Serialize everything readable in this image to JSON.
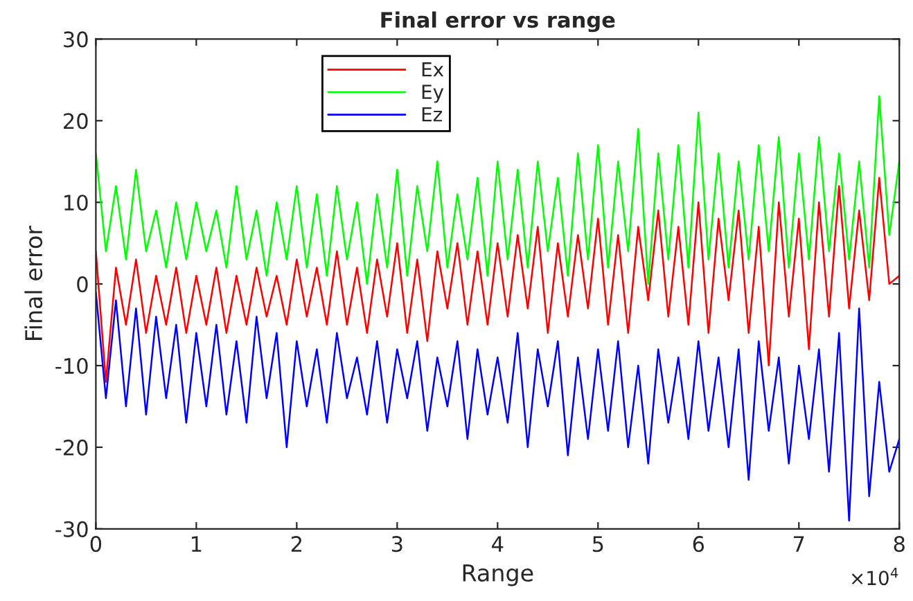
{
  "chart_data": {
    "type": "line",
    "title": "Final error vs range",
    "xlabel": "Range",
    "ylabel": "Final error",
    "x": [
      0,
      0.1,
      0.2,
      0.3,
      0.4,
      0.5,
      0.6,
      0.7,
      0.8,
      0.9,
      1,
      1.1,
      1.2,
      1.3,
      1.4,
      1.5,
      1.6,
      1.7,
      1.8,
      1.9,
      2,
      2.1,
      2.2,
      2.3,
      2.4,
      2.5,
      2.6,
      2.7,
      2.8,
      2.9,
      3,
      3.1,
      3.2,
      3.3,
      3.4,
      3.5,
      3.6,
      3.7,
      3.8,
      3.9,
      4,
      4.1,
      4.2,
      4.3,
      4.4,
      4.5,
      4.6,
      4.7,
      4.8,
      4.9,
      5,
      5.1,
      5.2,
      5.3,
      5.4,
      5.5,
      5.6,
      5.7,
      5.8,
      5.9,
      6,
      6.1,
      6.2,
      6.3,
      6.4,
      6.5,
      6.6,
      6.7,
      6.8,
      6.9,
      7,
      7.1,
      7.2,
      7.3,
      7.4,
      7.5,
      7.6,
      7.7,
      7.8,
      7.9,
      8
    ],
    "series": [
      {
        "name": "Ex",
        "color": "#ff0000",
        "values": [
          4,
          -12,
          2,
          -5,
          3,
          -6,
          1,
          -5,
          2,
          -6,
          1,
          -5,
          2,
          -6,
          1,
          -5,
          2,
          -4,
          1,
          -5,
          3,
          -4,
          2,
          -5,
          4,
          -5,
          2,
          -6,
          3,
          -4,
          5,
          -6,
          3,
          -7,
          4,
          -3,
          5,
          -5,
          4,
          -5,
          5,
          -4,
          6,
          -3,
          7,
          -6,
          5,
          -4,
          6,
          -3,
          8,
          -5,
          6,
          -6,
          7,
          -2,
          9,
          -4,
          7,
          -5,
          10,
          -6,
          8,
          -2,
          9,
          -6,
          7,
          -10,
          10,
          -4,
          8,
          -8,
          10,
          -4,
          12,
          -3,
          9,
          -2,
          13,
          0,
          1
        ]
      },
      {
        "name": "Ey",
        "color": "#00ff00",
        "values": [
          16,
          4,
          12,
          3,
          14,
          4,
          9,
          2,
          10,
          3,
          10,
          4,
          9,
          2,
          12,
          3,
          9,
          1,
          10,
          3,
          12,
          2,
          11,
          1,
          12,
          3,
          10,
          0,
          11,
          2,
          14,
          1,
          12,
          4,
          15,
          2,
          11,
          3,
          13,
          1,
          15,
          3,
          14,
          2,
          15,
          4,
          13,
          1,
          16,
          3,
          17,
          2,
          15,
          4,
          19,
          0,
          16,
          3,
          17,
          2,
          21,
          3,
          16,
          2,
          15,
          3,
          17,
          4,
          18,
          2,
          16,
          3,
          18,
          4,
          16,
          3,
          15,
          2,
          23,
          6,
          15
        ]
      },
      {
        "name": "Ez",
        "color": "#0000ff",
        "values": [
          -1,
          -14,
          -2,
          -15,
          -3,
          -16,
          -4,
          -14,
          -5,
          -17,
          -6,
          -15,
          -5,
          -16,
          -7,
          -17,
          -4,
          -14,
          -6,
          -20,
          -7,
          -15,
          -8,
          -17,
          -6,
          -14,
          -9,
          -16,
          -7,
          -17,
          -8,
          -14,
          -7,
          -18,
          -9,
          -15,
          -7,
          -19,
          -8,
          -16,
          -9,
          -17,
          -6,
          -20,
          -8,
          -15,
          -7,
          -21,
          -9,
          -19,
          -8,
          -18,
          -7,
          -20,
          -10,
          -22,
          -8,
          -17,
          -9,
          -19,
          -7,
          -18,
          -9,
          -20,
          -8,
          -24,
          -7,
          -18,
          -9,
          -22,
          -10,
          -19,
          -8,
          -23,
          -6,
          -29,
          -3,
          -26,
          -12,
          -23,
          -19
        ]
      }
    ],
    "xlim": [
      0,
      8
    ],
    "ylim": [
      -30,
      30
    ],
    "xticks": [
      0,
      1,
      2,
      3,
      4,
      5,
      6,
      7,
      8
    ],
    "yticks": [
      -30,
      -20,
      -10,
      0,
      10,
      20,
      30
    ],
    "annotations": [
      "×10$^{4}$"
    ],
    "legend": "top left",
    "grid": false,
    "marker": "none",
    "line_style": "solid"
  }
}
